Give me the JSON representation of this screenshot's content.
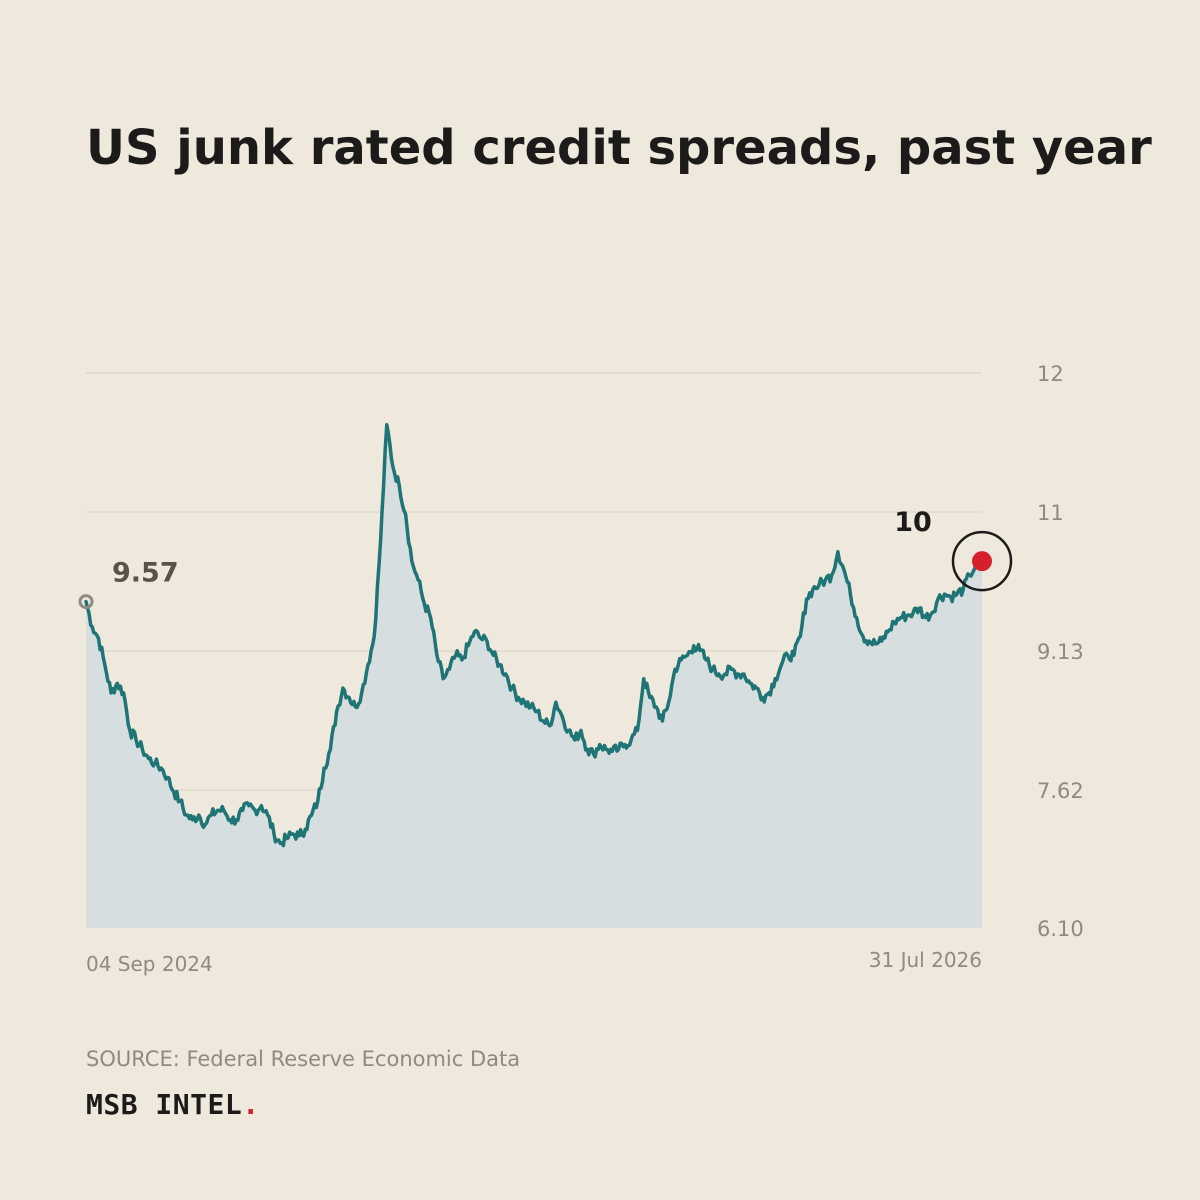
{
  "title": "US junk rated credit spreads, past year",
  "source": "SOURCE: Federal Reserve Economic Data",
  "brand": {
    "name": "MSB INTEL",
    "dot": "."
  },
  "colors": {
    "background": "#efe8dc",
    "line": "#1f7475",
    "area": "#d6dedf",
    "grid": "#d9d2c6",
    "tick_text": "#8f8a82",
    "start_marker": "#8f8a82",
    "end_marker": "#d5202b",
    "start_label": "#5a5148",
    "end_label": "#1c1b1a"
  },
  "chart_data": {
    "type": "area",
    "title": "US junk rated credit spreads, past year",
    "x_start_label": "04 Sep 2024",
    "x_end_label": "31 Jul 2026",
    "y_ticks": [
      "12",
      "11",
      "9.13",
      "7.62",
      "6.10"
    ],
    "ylim": [
      6.1,
      12
    ],
    "grid": true,
    "start_value_label": "9.57",
    "end_value_label": "10",
    "series": [
      {
        "values": [
          9.57,
          9.3,
          9.18,
          8.9,
          8.6,
          8.7,
          8.6,
          8.2,
          8.1,
          8.0,
          7.9,
          7.85,
          7.8,
          7.7,
          7.55,
          7.45,
          7.3,
          7.25,
          7.3,
          7.2,
          7.3,
          7.35,
          7.35,
          7.25,
          7.25,
          7.35,
          7.4,
          7.35,
          7.4,
          7.3,
          7.1,
          7.0,
          7.05,
          7.1,
          7.08,
          7.15,
          7.3,
          7.45,
          7.8,
          8.0,
          8.4,
          8.65,
          8.55,
          8.45,
          8.6,
          8.9,
          9.2,
          10.2,
          11.45,
          11.0,
          10.8,
          10.5,
          10.0,
          9.8,
          9.55,
          9.4,
          9.0,
          8.75,
          8.85,
          9.0,
          8.95,
          9.1,
          9.25,
          9.18,
          9.15,
          9.0,
          8.9,
          8.8,
          8.65,
          8.55,
          8.5,
          8.45,
          8.4,
          8.3,
          8.25,
          8.5,
          8.35,
          8.2,
          8.1,
          8.2,
          8.0,
          7.95,
          8.05,
          8.0,
          7.98,
          8.0,
          8.05,
          8.1,
          8.2,
          8.75,
          8.55,
          8.45,
          8.3,
          8.5,
          8.85,
          8.95,
          9.0,
          9.1,
          9.05,
          8.95,
          8.85,
          8.8,
          8.8,
          8.85,
          8.8,
          8.8,
          8.7,
          8.65,
          8.55,
          8.6,
          8.75,
          8.9,
          9.0,
          9.0,
          9.2,
          9.6,
          9.7,
          9.75,
          9.8,
          9.85,
          10.1,
          9.9,
          9.65,
          9.4,
          9.2,
          9.15,
          9.12,
          9.15,
          9.25,
          9.35,
          9.4,
          9.42,
          9.45,
          9.5,
          9.4,
          9.45,
          9.6,
          9.65,
          9.62,
          9.65,
          9.7,
          9.85,
          9.95,
          10.0
        ]
      }
    ]
  }
}
